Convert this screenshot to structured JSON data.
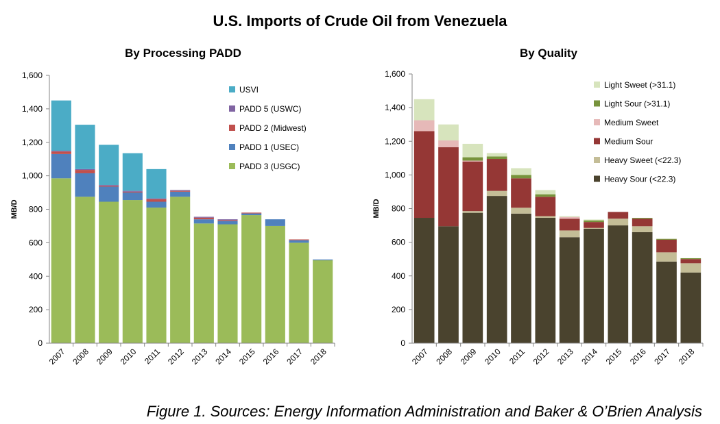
{
  "title": "U.S. Imports of Crude Oil from Venezuela",
  "caption": "Figure 1.  Sources: Energy Information Administration and Baker & O’Brien Analysis",
  "chart_data": [
    {
      "type": "bar",
      "stacked": true,
      "title": "By Processing PADD",
      "ylabel": "MB/D",
      "xlabel": "",
      "ylim": [
        0,
        1600
      ],
      "yticks": [
        0,
        200,
        400,
        600,
        800,
        1000,
        1200,
        1400,
        1600
      ],
      "ytick_labels": [
        "0",
        "200",
        "400",
        "600",
        "800",
        "1,000",
        "1,200",
        "1,400",
        "1,600"
      ],
      "grid": false,
      "legend_position": "top-right",
      "categories": [
        "2007",
        "2008",
        "2009",
        "2010",
        "2011",
        "2012",
        "2013",
        "2014",
        "2015",
        "2016",
        "2017",
        "2018"
      ],
      "series": [
        {
          "name": "PADD 3 (USGC)",
          "color": "#9bbb59",
          "values": [
            985,
            875,
            845,
            855,
            810,
            875,
            715,
            710,
            765,
            700,
            600,
            495
          ]
        },
        {
          "name": "PADD 1 (USEC)",
          "color": "#4f81bd",
          "values": [
            145,
            140,
            90,
            45,
            35,
            30,
            25,
            20,
            10,
            40,
            15,
            5
          ]
        },
        {
          "name": "PADD 2 (Midwest)",
          "color": "#c0504d",
          "values": [
            15,
            20,
            5,
            5,
            15,
            5,
            10,
            5,
            5,
            0,
            5,
            0
          ]
        },
        {
          "name": "PADD 5 (USWC)",
          "color": "#8064a2",
          "values": [
            5,
            5,
            5,
            5,
            5,
            5,
            5,
            5,
            0,
            0,
            0,
            0
          ]
        },
        {
          "name": "USVI",
          "color": "#4bacc6",
          "values": [
            300,
            265,
            240,
            225,
            175,
            0,
            0,
            0,
            0,
            0,
            0,
            0
          ]
        }
      ]
    },
    {
      "type": "bar",
      "stacked": true,
      "title": "By Quality",
      "ylabel": "MB/D",
      "xlabel": "",
      "ylim": [
        0,
        1600
      ],
      "yticks": [
        0,
        200,
        400,
        600,
        800,
        1000,
        1200,
        1400,
        1600
      ],
      "ytick_labels": [
        "0",
        "200",
        "400",
        "600",
        "800",
        "1,000",
        "1,200",
        "1,400",
        "1,600"
      ],
      "grid": false,
      "legend_position": "top-right",
      "categories": [
        "2007",
        "2008",
        "2009",
        "2010",
        "2011",
        "2012",
        "2013",
        "2014",
        "2015",
        "2016",
        "2017",
        "2018"
      ],
      "series": [
        {
          "name": "Heavy Sour (<22.3)",
          "color": "#4a432e",
          "values": [
            745,
            695,
            775,
            875,
            770,
            745,
            630,
            680,
            700,
            660,
            485,
            420
          ]
        },
        {
          "name": "Heavy Sweet (<22.3)",
          "color": "#c4bd97",
          "values": [
            0,
            0,
            10,
            30,
            35,
            10,
            40,
            5,
            40,
            35,
            55,
            55
          ]
        },
        {
          "name": "Medium Sour",
          "color": "#953735",
          "values": [
            515,
            470,
            295,
            190,
            175,
            115,
            70,
            35,
            40,
            45,
            75,
            25
          ]
        },
        {
          "name": "Medium Sweet",
          "color": "#e6b9b8",
          "values": [
            65,
            40,
            5,
            0,
            0,
            0,
            10,
            0,
            0,
            0,
            0,
            0
          ]
        },
        {
          "name": "Light Sour (>31.1)",
          "color": "#77933c",
          "values": [
            0,
            0,
            20,
            15,
            20,
            15,
            0,
            10,
            0,
            5,
            5,
            5
          ]
        },
        {
          "name": "Light Sweet (>31.1)",
          "color": "#d7e4bd",
          "values": [
            125,
            95,
            80,
            20,
            40,
            25,
            5,
            5,
            0,
            0,
            0,
            0
          ]
        }
      ]
    }
  ]
}
